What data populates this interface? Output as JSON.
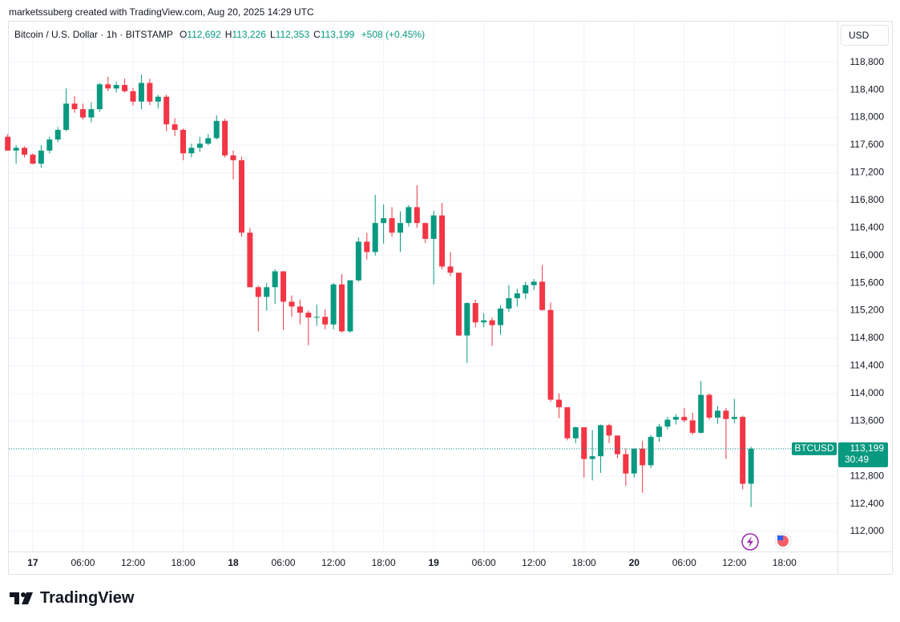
{
  "header": {
    "caption": "marketssuberg created with TradingView.com, Aug 20, 2025 14:29 UTC"
  },
  "legend": {
    "symbol": "Bitcoin / U.S. Dollar · 1h · BITSTAMP",
    "fields": [
      {
        "key": "O",
        "text": "112,692"
      },
      {
        "key": "H",
        "text": "113,226"
      },
      {
        "key": "L",
        "text": "112,353"
      },
      {
        "key": "C",
        "text": "113,199"
      }
    ],
    "change": "+508 (+0.45%)"
  },
  "currency": "USD",
  "branding": "TradingView",
  "chart_data": {
    "type": "candlestick",
    "up_color": "#089981",
    "down_color": "#f23645",
    "grid": true,
    "x": [
      -3,
      -2,
      -1,
      0,
      1,
      2,
      3,
      4,
      5,
      6,
      7,
      8,
      9,
      10,
      11,
      12,
      13,
      14,
      15,
      16,
      17,
      18,
      19,
      20,
      21,
      22,
      23,
      24,
      25,
      26,
      27,
      28,
      29,
      30,
      31,
      32,
      33,
      34,
      35,
      36,
      37,
      38,
      39,
      40,
      41,
      42,
      43,
      44,
      45,
      46,
      47,
      48,
      49,
      50,
      51,
      52,
      53,
      54,
      55,
      56,
      57,
      58,
      59,
      60,
      61,
      62,
      63,
      64,
      65,
      66,
      67,
      68,
      69,
      70,
      71,
      72,
      73,
      74,
      75,
      76,
      77,
      78,
      79,
      80,
      81,
      82,
      83,
      84,
      85,
      86
    ],
    "open": [
      117720,
      117520,
      117560,
      117460,
      117330,
      117520,
      117680,
      117820,
      118200,
      118120,
      118000,
      118120,
      118480,
      118420,
      118470,
      118380,
      118230,
      118500,
      118230,
      118300,
      117900,
      117820,
      117480,
      117560,
      117620,
      117700,
      117950,
      117450,
      117380,
      116330,
      115540,
      115400,
      115540,
      115770,
      115330,
      115260,
      115170,
      115100,
      115110,
      115000,
      115580,
      114900,
      115640,
      116200,
      116050,
      116470,
      116540,
      116330,
      116470,
      116700,
      116470,
      116240,
      116580,
      115840,
      115750,
      114840,
      115310,
      115030,
      115060,
      114990,
      115230,
      115380,
      115450,
      115570,
      115620,
      115210,
      113910,
      113800,
      113350,
      113510,
      113050,
      113090,
      113540,
      113390,
      113120,
      112840,
      113200,
      112960,
      113370,
      113520,
      113620,
      113660,
      113610,
      113430,
      113980,
      113650,
      113750,
      113630,
      113660,
      112692
    ],
    "high": [
      117760,
      117600,
      117580,
      117480,
      117600,
      117720,
      117860,
      118420,
      118310,
      118200,
      118220,
      118500,
      118590,
      118520,
      118560,
      118430,
      118620,
      118560,
      118330,
      118330,
      117990,
      117840,
      117620,
      117720,
      117760,
      118030,
      117980,
      117520,
      117430,
      116400,
      115560,
      115600,
      115800,
      115770,
      115420,
      115360,
      115200,
      115290,
      115220,
      115600,
      115730,
      115640,
      116260,
      116330,
      116880,
      116740,
      116700,
      116640,
      116730,
      117020,
      116470,
      116650,
      116760,
      116050,
      115750,
      115320,
      115360,
      115160,
      115100,
      115280,
      115570,
      115520,
      115620,
      115660,
      115860,
      115320,
      114000,
      113800,
      113520,
      113510,
      113470,
      113550,
      113560,
      113390,
      113200,
      113200,
      113310,
      113400,
      113560,
      113660,
      113700,
      113790,
      113720,
      114180,
      114000,
      113820,
      113790,
      113920,
      113680,
      113226
    ],
    "low": [
      117520,
      117330,
      117420,
      117320,
      117270,
      117480,
      117640,
      117800,
      118070,
      117970,
      117930,
      118080,
      118380,
      118360,
      118360,
      118170,
      118120,
      118180,
      118130,
      117800,
      117730,
      117380,
      117420,
      117500,
      117600,
      117680,
      117420,
      117100,
      116270,
      115540,
      114900,
      115200,
      115300,
      114920,
      115110,
      115000,
      114700,
      114980,
      114930,
      114930,
      114880,
      114880,
      115620,
      115940,
      116000,
      116170,
      116270,
      116050,
      116420,
      116400,
      116180,
      115580,
      115800,
      115700,
      114830,
      114440,
      114960,
      114960,
      114690,
      114850,
      115180,
      115260,
      115370,
      115500,
      115200,
      113880,
      113640,
      113320,
      113280,
      112780,
      112740,
      112850,
      113280,
      113060,
      112660,
      112780,
      112560,
      112920,
      113300,
      113480,
      113550,
      113580,
      113400,
      113420,
      113620,
      113560,
      113050,
      113570,
      112610,
      112353
    ],
    "close": [
      117520,
      117560,
      117460,
      117330,
      117520,
      117680,
      117820,
      118200,
      118120,
      118000,
      118120,
      118480,
      118420,
      118470,
      118380,
      118230,
      118500,
      118230,
      118300,
      117900,
      117820,
      117480,
      117560,
      117620,
      117700,
      117950,
      117450,
      117380,
      116330,
      115540,
      115400,
      115540,
      115770,
      115330,
      115260,
      115170,
      115100,
      115110,
      115000,
      115580,
      114900,
      115640,
      116200,
      116050,
      116470,
      116540,
      116330,
      116470,
      116700,
      116470,
      116240,
      116580,
      115840,
      115750,
      114840,
      115310,
      115030,
      115060,
      114990,
      115230,
      115380,
      115450,
      115570,
      115620,
      115210,
      113910,
      113800,
      113350,
      113510,
      113050,
      113090,
      113540,
      113390,
      113120,
      112840,
      113200,
      112960,
      113370,
      113520,
      113620,
      113660,
      113610,
      113430,
      113980,
      113650,
      113750,
      113630,
      113660,
      112691,
      113199
    ],
    "xlim": [
      -2.97,
      96.35
    ],
    "xticks": [
      {
        "value": 0,
        "label": "17"
      },
      {
        "value": 6,
        "label": "06:00"
      },
      {
        "value": 12,
        "label": "12:00"
      },
      {
        "value": 18,
        "label": "18:00"
      },
      {
        "value": 24,
        "label": "18"
      },
      {
        "value": 30,
        "label": "06:00"
      },
      {
        "value": 36,
        "label": "12:00"
      },
      {
        "value": 42,
        "label": "18:00"
      },
      {
        "value": 48,
        "label": "19"
      },
      {
        "value": 54,
        "label": "06:00"
      },
      {
        "value": 60,
        "label": "12:00"
      },
      {
        "value": 66,
        "label": "18:00"
      },
      {
        "value": 72,
        "label": "20"
      },
      {
        "value": 78,
        "label": "06:00"
      },
      {
        "value": 84,
        "label": "12:00"
      },
      {
        "value": 90,
        "label": "18:00"
      }
    ],
    "ylim": [
      111710,
      119400
    ],
    "yticks": [
      {
        "value": 112000,
        "label": "112,000"
      },
      {
        "value": 112400,
        "label": "112,400"
      },
      {
        "value": 112800,
        "label": "112,800"
      },
      {
        "value": 113200,
        "label": "113,200"
      },
      {
        "value": 113600,
        "label": "113,600"
      },
      {
        "value": 114000,
        "label": "114,000"
      },
      {
        "value": 114400,
        "label": "114,400"
      },
      {
        "value": 114800,
        "label": "114,800"
      },
      {
        "value": 115200,
        "label": "115,200"
      },
      {
        "value": 115600,
        "label": "115,600"
      },
      {
        "value": 116000,
        "label": "116,000"
      },
      {
        "value": 116400,
        "label": "116,400"
      },
      {
        "value": 116800,
        "label": "116,800"
      },
      {
        "value": 117200,
        "label": "117,200"
      },
      {
        "value": 117600,
        "label": "117,600"
      },
      {
        "value": 118000,
        "label": "118,000"
      },
      {
        "value": 118400,
        "label": "118,400"
      },
      {
        "value": 118800,
        "label": "118,800"
      }
    ],
    "last_price": {
      "symbol": "BTCUSD",
      "value": 113199,
      "label": "113,199",
      "countdown": "30:49"
    }
  }
}
